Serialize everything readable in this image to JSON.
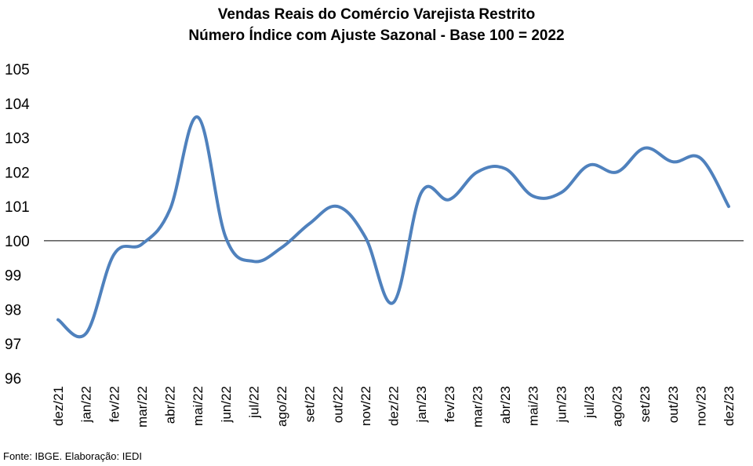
{
  "chart_data": {
    "type": "line",
    "title": "Vendas Reais do Comércio Varejista Restrito",
    "subtitle": "Número Índice com Ajuste Sazonal - Base 100 = 2022",
    "xlabel": "",
    "ylabel": "",
    "ylim": [
      96,
      105
    ],
    "yticks": [
      "105",
      "104",
      "103",
      "102",
      "101",
      "100",
      "99",
      "98",
      "97",
      "96"
    ],
    "grid": false,
    "reference_line": 100,
    "categories": [
      "dez/21",
      "jan/22",
      "fev/22",
      "mar/22",
      "abr/22",
      "mai/22",
      "jun/22",
      "jul/22",
      "ago/22",
      "set/22",
      "out/22",
      "nov/22",
      "dez/22",
      "jan/23",
      "fev/23",
      "mar/23",
      "abr/23",
      "mai/23",
      "jun/23",
      "jul/23",
      "ago/23",
      "set/23",
      "out/23",
      "nov/23",
      "dez/23"
    ],
    "series": [
      {
        "values": [
          97.7,
          97.3,
          99.6,
          99.9,
          100.9,
          103.6,
          100.1,
          99.4,
          99.8,
          100.5,
          101.0,
          100.1,
          98.2,
          101.4,
          101.2,
          102.0,
          102.1,
          101.3,
          101.4,
          102.2,
          102.0,
          102.7,
          102.3,
          102.4,
          101.0
        ],
        "color": "#4F81BD"
      }
    ]
  },
  "source": "Fonte: IBGE. Elaboração: IEDI"
}
